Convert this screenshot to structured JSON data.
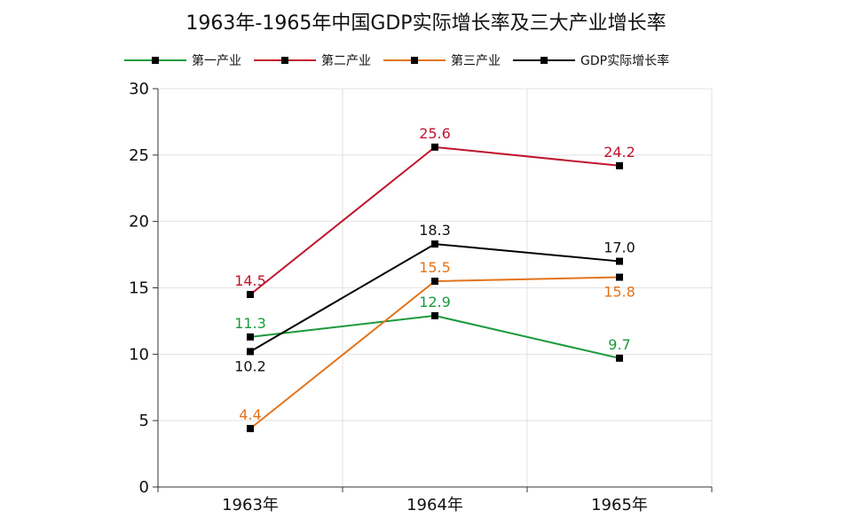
{
  "chart_data": {
    "type": "line",
    "title": "1963年-1965年中国GDP实际增长率及三大产业增长率",
    "categories": [
      "1963年",
      "1964年",
      "1965年"
    ],
    "ylim": [
      0,
      30
    ],
    "yticks": [
      0,
      5,
      10,
      15,
      20,
      25,
      30
    ],
    "grid": true,
    "legend_position": "top",
    "series": [
      {
        "name": "第一产业",
        "color": "#1a9a3c",
        "values": [
          11.3,
          12.9,
          9.7
        ],
        "labels": [
          "11.3",
          "12.9",
          "9.7"
        ],
        "label_side": [
          "above",
          "above",
          "above"
        ]
      },
      {
        "name": "第二产业",
        "color": "#c0152d",
        "values": [
          14.5,
          25.6,
          24.2
        ],
        "labels": [
          "14.5",
          "25.6",
          "24.2"
        ],
        "label_side": [
          "above",
          "above",
          "above"
        ]
      },
      {
        "name": "第三产业",
        "color": "#e3731a",
        "values": [
          4.4,
          15.5,
          15.8
        ],
        "labels": [
          "4.4",
          "15.5",
          "15.8"
        ],
        "label_side": [
          "above",
          "above",
          "below"
        ]
      },
      {
        "name": "GDP实际增长率",
        "color": "#000000",
        "values": [
          10.2,
          18.3,
          17.0
        ],
        "labels": [
          "10.2",
          "18.3",
          "17.0"
        ],
        "label_side": [
          "below",
          "above",
          "above"
        ]
      }
    ]
  }
}
